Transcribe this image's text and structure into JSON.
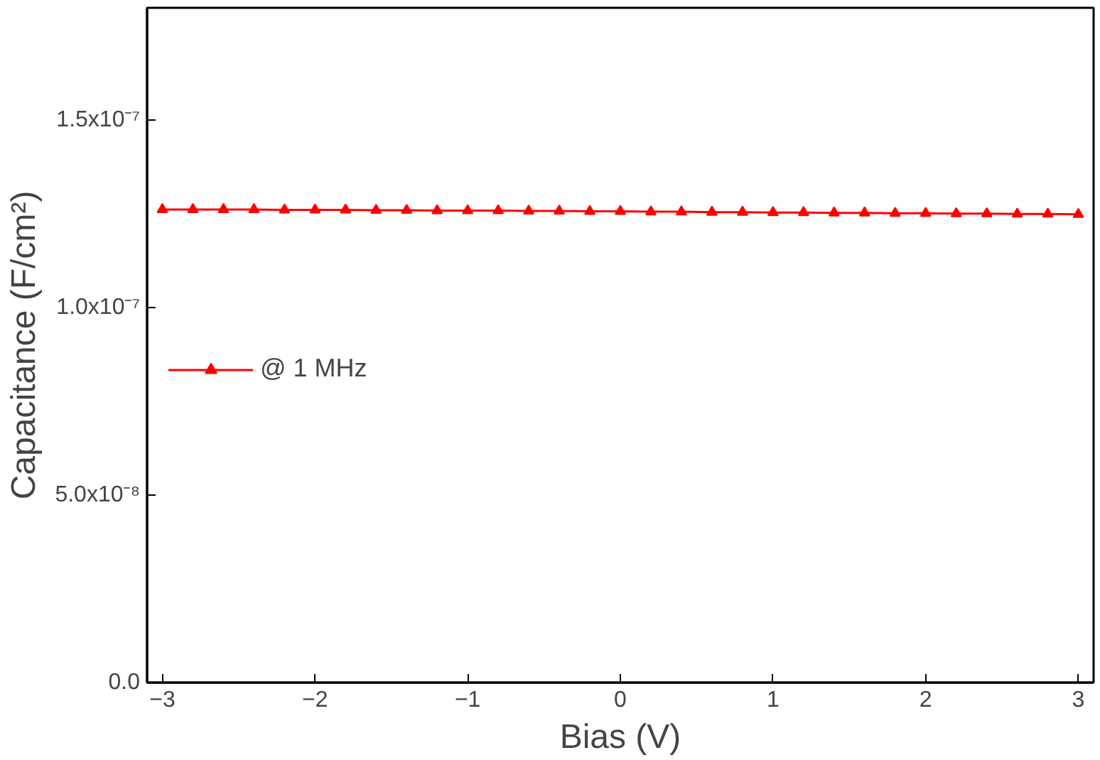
{
  "chart_data": {
    "type": "line",
    "xlabel": "Bias (V)",
    "ylabel": "Capacitance (F/cm²)",
    "x": [
      -3.0,
      -2.8,
      -2.6,
      -2.4,
      -2.2,
      -2.0,
      -1.8,
      -1.6,
      -1.4,
      -1.2,
      -1.0,
      -0.8,
      -0.6,
      -0.4,
      -0.2,
      0.0,
      0.2,
      0.4,
      0.6,
      0.8,
      1.0,
      1.2,
      1.4,
      1.6,
      1.8,
      2.0,
      2.2,
      2.4,
      2.6,
      2.8,
      3.0
    ],
    "series": [
      {
        "name": "@ 1 MHz",
        "color": "#ff0000",
        "values": [
          1.262e-07,
          1.262e-07,
          1.262e-07,
          1.262e-07,
          1.261e-07,
          1.261e-07,
          1.261e-07,
          1.26e-07,
          1.26e-07,
          1.259e-07,
          1.259e-07,
          1.259e-07,
          1.258e-07,
          1.258e-07,
          1.257e-07,
          1.257e-07,
          1.256e-07,
          1.256e-07,
          1.255e-07,
          1.255e-07,
          1.254e-07,
          1.254e-07,
          1.253e-07,
          1.253e-07,
          1.252e-07,
          1.252e-07,
          1.251e-07,
          1.251e-07,
          1.25e-07,
          1.25e-07,
          1.249e-07
        ]
      }
    ],
    "xlim": [
      -3.1,
      3.1
    ],
    "ylim": [
      0,
      1.8e-07
    ],
    "xticks": [
      -3,
      -2,
      -1,
      0,
      1,
      2,
      3
    ],
    "yticks": [
      {
        "value": 0,
        "label": "0.0"
      },
      {
        "value": 5e-08,
        "label": "5.0x10⁻⁸"
      },
      {
        "value": 1e-07,
        "label": "1.0x10⁻⁷"
      },
      {
        "value": 1.5e-07,
        "label": "1.5x10⁻⁷"
      }
    ],
    "marker": "triangle",
    "line_style": "solid",
    "grid": false,
    "legend": "left"
  }
}
